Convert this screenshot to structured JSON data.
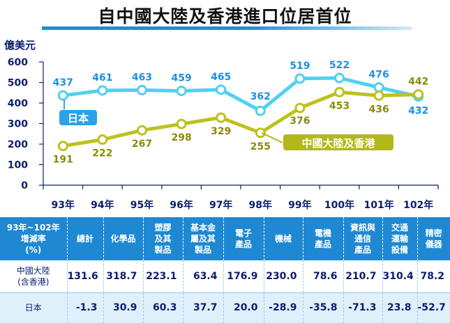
{
  "title": "自中國大陸及香港進口位居首位",
  "colors": {
    "japan": "#4fd0f2",
    "china": "#bcc21f",
    "japan_label_bg": "#2aa3e6",
    "china_label_bg": "#b2b81b",
    "header_bg": "#1e88d2"
  },
  "chart_data": {
    "type": "line",
    "ylabel": "億美元",
    "categories": [
      "93年",
      "94年",
      "95年",
      "96年",
      "97年",
      "98年",
      "99年",
      "100年",
      "101年",
      "102年"
    ],
    "yticks": [
      "600",
      "500",
      "400",
      "300",
      "200",
      "100",
      "0"
    ],
    "ylim": [
      0,
      600
    ],
    "grid": false,
    "series": [
      {
        "name": "日本",
        "values": [
          437,
          461,
          463,
          459,
          465,
          362,
          519,
          522,
          476,
          432
        ]
      },
      {
        "name": "中國大陸及香港",
        "values": [
          191,
          222,
          267,
          298,
          329,
          255,
          376,
          453,
          436,
          442
        ]
      }
    ]
  },
  "table": {
    "header_first": "93年~102年\n增減率\n(%)",
    "columns": [
      "總計",
      "化學品",
      "塑膠\n及其\n製品",
      "基本金\n屬及其\n製品",
      "電子\n產品",
      "機械",
      "電機\n產品",
      "資訊與\n通信\n產品",
      "交通\n運輸\n設備",
      "精密\n儀器"
    ],
    "rows": [
      {
        "label": "中國大陸\n(含香港)",
        "values": [
          "131.6",
          "318.7",
          "223.1",
          "63.4",
          "176.9",
          "230.0",
          "78.6",
          "210.7",
          "310.4",
          "78.2"
        ]
      },
      {
        "label": "日本",
        "values": [
          "-1.3",
          "30.9",
          "60.3",
          "37.7",
          "20.0",
          "-28.9",
          "-35.8",
          "-71.3",
          "23.8",
          "-52.7"
        ]
      }
    ]
  }
}
